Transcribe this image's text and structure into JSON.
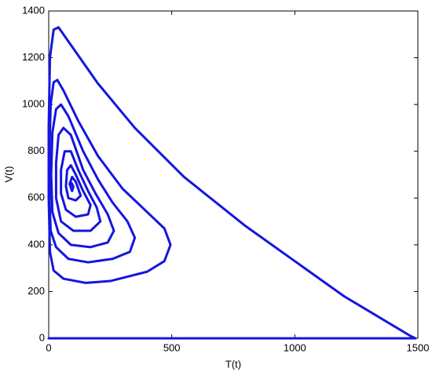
{
  "chart_data": {
    "type": "line",
    "x_label": "T(t)",
    "y_label": "V(t)",
    "xlim": [
      0,
      1500
    ],
    "xticks": [
      0,
      500,
      1000,
      1500
    ],
    "ylim": [
      0,
      1400
    ],
    "yticks": [
      0,
      200,
      400,
      600,
      800,
      1000,
      1200,
      1400
    ],
    "series": [
      {
        "color": "#1515e0",
        "x": [
          0,
          1490,
          1470,
          1200,
          800,
          550,
          350,
          200,
          40,
          20,
          5,
          0,
          0,
          5,
          20,
          60,
          150,
          250,
          400,
          470,
          495,
          470,
          400,
          300,
          200,
          120,
          60,
          35,
          20,
          8,
          3,
          3,
          8,
          30,
          80,
          160,
          260,
          330,
          350,
          320,
          260,
          200,
          140,
          80,
          50,
          30,
          15,
          10,
          15,
          40,
          90,
          170,
          240,
          265,
          240,
          190,
          140,
          90,
          60,
          40,
          30,
          30,
          50,
          100,
          170,
          210,
          195,
          160,
          120,
          90,
          65,
          50,
          50,
          70,
          110,
          160,
          170,
          140,
          110,
          90,
          75,
          70,
          80,
          110,
          130,
          110,
          95,
          85,
          95,
          100,
          92
        ],
        "values": [
          0,
          0,
          10,
          180,
          480,
          690,
          900,
          1090,
          1330,
          1320,
          1200,
          900,
          600,
          370,
          290,
          255,
          237,
          245,
          285,
          330,
          400,
          470,
          540,
          640,
          780,
          930,
          1060,
          1105,
          1095,
          1000,
          800,
          600,
          460,
          390,
          340,
          325,
          340,
          370,
          430,
          500,
          580,
          680,
          800,
          950,
          1000,
          980,
          880,
          700,
          540,
          450,
          400,
          390,
          410,
          460,
          530,
          620,
          720,
          870,
          900,
          870,
          750,
          600,
          500,
          460,
          460,
          500,
          560,
          630,
          720,
          800,
          800,
          720,
          620,
          550,
          520,
          530,
          570,
          630,
          700,
          740,
          720,
          650,
          600,
          590,
          610,
          670,
          690,
          660,
          630,
          650,
          665
        ]
      }
    ]
  }
}
